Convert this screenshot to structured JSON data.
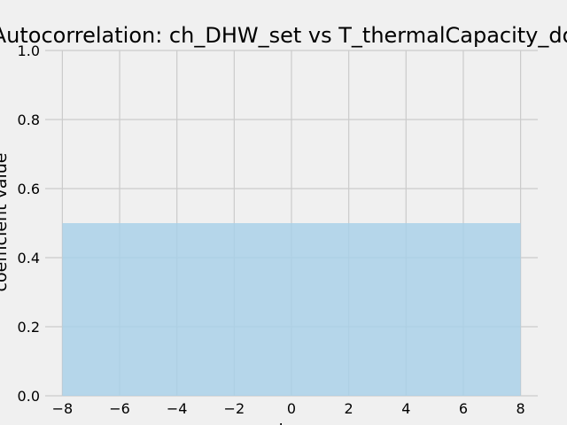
{
  "chart_data": {
    "type": "area",
    "title": "Autocorrelation: ch_DHW_set vs T_thermalCapacity_do",
    "xlabel": "lag",
    "ylabel": "coefficient value",
    "xlim": [
      -8.6,
      8.6
    ],
    "ylim": [
      0,
      1
    ],
    "x_ticks": [
      -8,
      -6,
      -4,
      -2,
      0,
      2,
      4,
      6,
      8
    ],
    "x_tick_labels": [
      "−8",
      "−6",
      "−4",
      "−2",
      "0",
      "2",
      "4",
      "6",
      "8"
    ],
    "y_ticks": [
      0,
      0.2,
      0.4,
      0.6,
      0.8,
      1.0
    ],
    "y_tick_labels": [
      "0.0",
      "0.2",
      "0.4",
      "0.6",
      "0.8",
      "1.0"
    ],
    "grid": true,
    "series": [
      {
        "x": [
          -8,
          8
        ],
        "values": [
          0.5,
          0.5
        ],
        "color": "#a6d0e8"
      }
    ],
    "colors": {
      "background": "#f0f0f0",
      "grid": "#cbcbcb",
      "fill": "#a6d0e8"
    }
  }
}
